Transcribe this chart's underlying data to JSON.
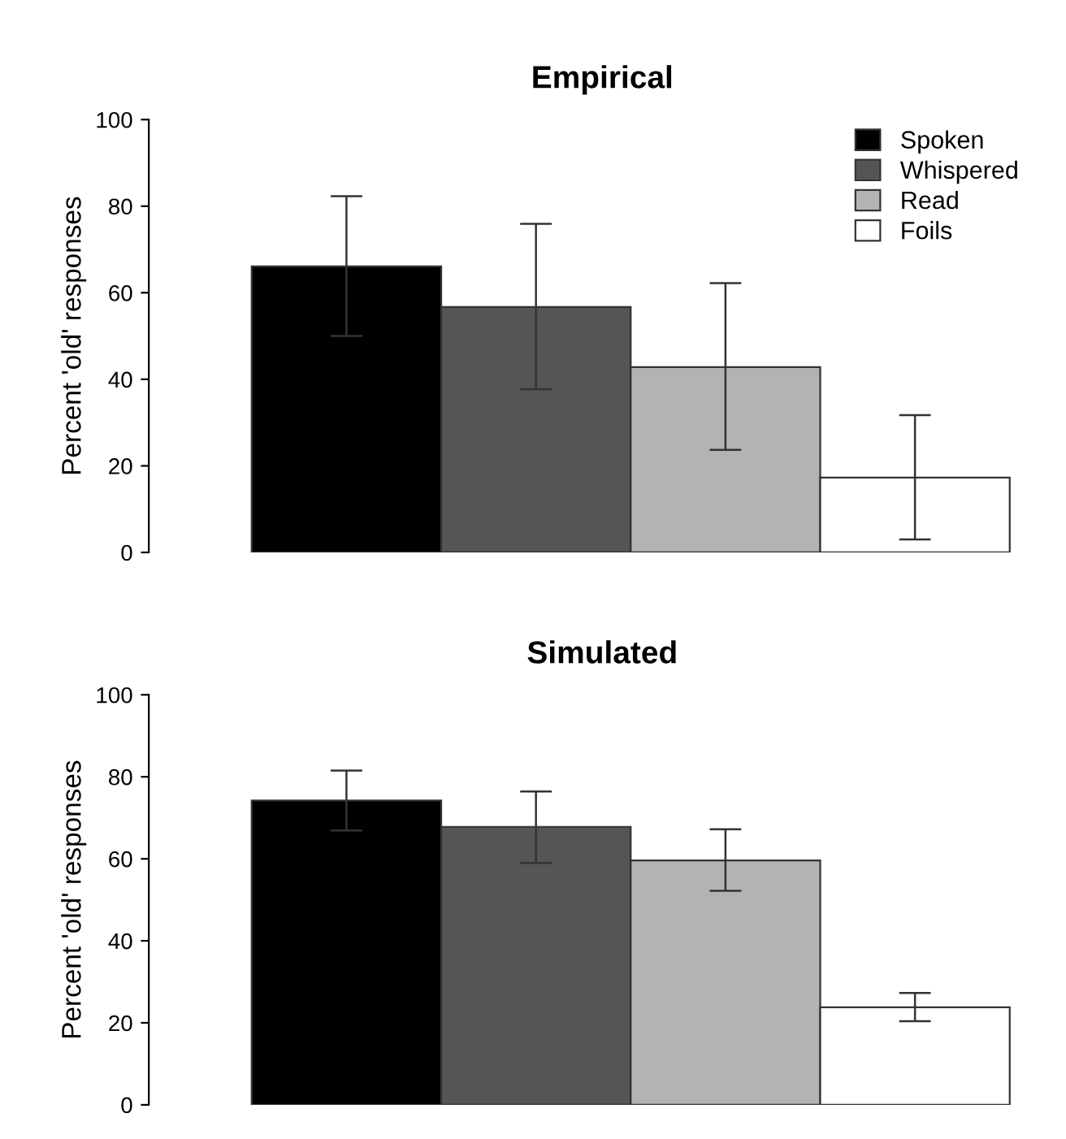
{
  "chart_data": [
    {
      "type": "bar",
      "title": "Empirical",
      "ylabel": "Percent 'old' responses",
      "categories": [
        null
      ],
      "ylim": [
        0,
        100
      ],
      "yticks": [
        0,
        20,
        40,
        60,
        80,
        100
      ],
      "grid": false,
      "legend": "top right",
      "series": [
        {
          "name": "Spoken",
          "color": "#000000",
          "values": [
            66.1
          ],
          "errors": [
            [
              50,
              82.3
            ]
          ]
        },
        {
          "name": "Whispered",
          "color": "#555555",
          "values": [
            56.7
          ],
          "errors": [
            [
              37.7,
              75.9
            ]
          ]
        },
        {
          "name": "Read",
          "color": "#b3b3b3",
          "values": [
            42.8
          ],
          "errors": [
            [
              23.7,
              62.2
            ]
          ]
        },
        {
          "name": "Foils",
          "color": "#ffffff",
          "values": [
            17.3
          ],
          "errors": [
            [
              3.0,
              31.7
            ]
          ]
        }
      ]
    },
    {
      "type": "bar",
      "title": "Simulated",
      "ylabel": "Percent 'old' responses",
      "categories": [
        null
      ],
      "ylim": [
        0,
        100
      ],
      "yticks": [
        0,
        20,
        40,
        60,
        80,
        100
      ],
      "grid": false,
      "series": [
        {
          "color": "#000000",
          "values": [
            74.2
          ],
          "errors": [
            [
              66.9,
              81.5
            ]
          ]
        },
        {
          "color": "#555555",
          "values": [
            67.8
          ],
          "errors": [
            [
              59.0,
              76.4
            ]
          ]
        },
        {
          "color": "#b3b3b3",
          "values": [
            59.6
          ],
          "errors": [
            [
              52.2,
              67.2
            ]
          ]
        },
        {
          "color": "#ffffff",
          "values": [
            23.8
          ],
          "errors": [
            [
              20.4,
              27.3
            ]
          ]
        }
      ]
    }
  ]
}
